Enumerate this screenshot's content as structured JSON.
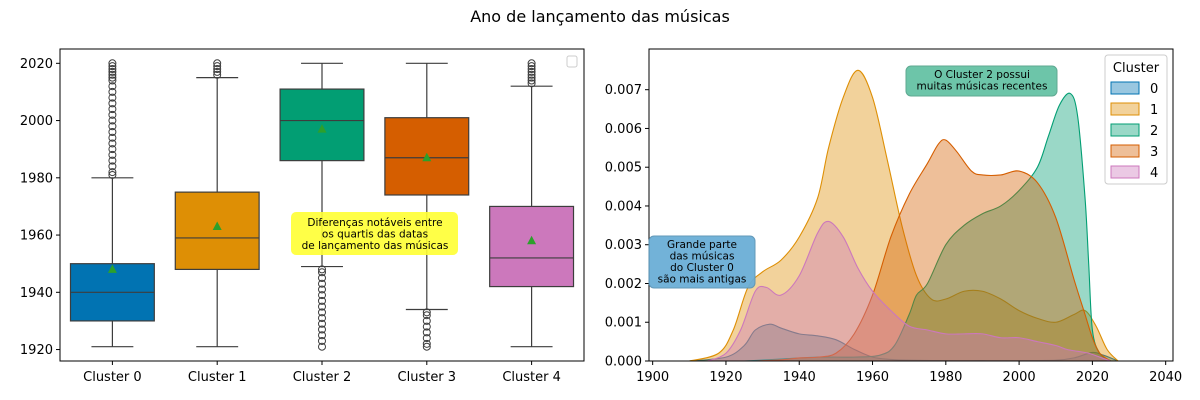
{
  "suptitle": "Ano de lançamento das músicas",
  "chart_data": [
    {
      "type": "box",
      "categories": [
        "Cluster 0",
        "Cluster 1",
        "Cluster 2",
        "Cluster 3",
        "Cluster 4"
      ],
      "colors": [
        "#0173b2",
        "#de8f05",
        "#029e73",
        "#d55e00",
        "#cc78bc"
      ],
      "boxes": [
        {
          "whislo": 1921,
          "q1": 1930,
          "median": 1940,
          "q3": 1950,
          "whishi": 1980,
          "mean": 1948,
          "fliers": [
            1981,
            1982,
            1984,
            1986,
            1988,
            1990,
            1992,
            1994,
            1996,
            1998,
            2000,
            2002,
            2004,
            2006,
            2008,
            2010,
            2012,
            2014,
            2015,
            2016,
            2017,
            2018,
            2019,
            2020
          ]
        },
        {
          "whislo": 1921,
          "q1": 1948,
          "median": 1959,
          "q3": 1975,
          "whishi": 2015,
          "mean": 1963,
          "fliers": [
            2016,
            2017,
            2018,
            2019,
            2020
          ]
        },
        {
          "whislo": 1949,
          "q1": 1986,
          "median": 2000,
          "q3": 2011,
          "whishi": 2020,
          "mean": 1997,
          "fliers": [
            1921,
            1923,
            1925,
            1927,
            1929,
            1931,
            1933,
            1935,
            1937,
            1939,
            1941,
            1943,
            1945,
            1947,
            1948
          ]
        },
        {
          "whislo": 1934,
          "q1": 1974,
          "median": 1987,
          "q3": 2001,
          "whishi": 2020,
          "mean": 1987,
          "fliers": [
            1921,
            1922,
            1924,
            1926,
            1928,
            1930,
            1932,
            1933
          ]
        },
        {
          "whislo": 1921,
          "q1": 1942,
          "median": 1952,
          "q3": 1970,
          "whishi": 2012,
          "mean": 1958,
          "fliers": [
            2013,
            2014,
            2015,
            2016,
            2017,
            2018,
            2019,
            2020
          ]
        }
      ],
      "ylim": [
        1916,
        2025
      ],
      "yticks": [
        1920,
        1940,
        1960,
        1980,
        2000,
        2020
      ],
      "annotation": {
        "text": [
          "Diferenças notáveis entre",
          "os quartis das datas",
          "de lançamento das músicas"
        ],
        "color": "#ffff33"
      }
    },
    {
      "type": "area",
      "xlim": [
        1899,
        2042
      ],
      "ylim": [
        0,
        0.00805
      ],
      "xticks": [
        1900,
        1920,
        1940,
        1960,
        1980,
        2000,
        2020,
        2040
      ],
      "yticks": [
        0.0,
        0.001,
        0.002,
        0.003,
        0.004,
        0.005,
        0.006,
        0.007
      ],
      "ytick_labels": [
        "0.000",
        "0.001",
        "0.002",
        "0.003",
        "0.004",
        "0.005",
        "0.006",
        "0.007"
      ],
      "legend": {
        "title": "Cluster",
        "position": "top-right"
      },
      "series": [
        {
          "name": "0",
          "color": "#0173b2",
          "x": [
            1910,
            1920,
            1925,
            1928,
            1932,
            1935,
            1940,
            1945,
            1950,
            1955,
            1960,
            1965,
            1970,
            1980,
            1990,
            2000,
            2010,
            2015,
            2020,
            2023,
            2027
          ],
          "y": [
            0,
            0.0001,
            0.0004,
            0.0008,
            0.00095,
            0.00085,
            0.0007,
            0.00065,
            0.00055,
            0.0003,
            0.0001,
            4e-05,
            2e-05,
            1e-05,
            1e-05,
            1e-05,
            2e-05,
            8e-05,
            0.00022,
            0.00015,
            0
          ]
        },
        {
          "name": "1",
          "color": "#de8f05",
          "x": [
            1910,
            1918,
            1922,
            1926,
            1930,
            1935,
            1940,
            1945,
            1948,
            1952,
            1956,
            1960,
            1964,
            1968,
            1972,
            1976,
            1980,
            1985,
            1990,
            1995,
            2000,
            2005,
            2010,
            2015,
            2018,
            2021,
            2024,
            2027
          ],
          "y": [
            0,
            0.0002,
            0.0008,
            0.0019,
            0.0023,
            0.0026,
            0.0032,
            0.0042,
            0.0055,
            0.0068,
            0.0075,
            0.0068,
            0.0052,
            0.0035,
            0.0022,
            0.0016,
            0.0016,
            0.0018,
            0.0018,
            0.0016,
            0.0013,
            0.0011,
            0.001,
            0.0012,
            0.0013,
            0.0009,
            0.0003,
            0
          ]
        },
        {
          "name": "2",
          "color": "#029e73",
          "x": [
            1925,
            1935,
            1945,
            1955,
            1962,
            1966,
            1970,
            1972,
            1975,
            1980,
            1985,
            1990,
            1995,
            2000,
            2005,
            2008,
            2011,
            2014,
            2016,
            2018,
            2019,
            2020,
            2022,
            2025
          ],
          "y": [
            0,
            5e-05,
            0.0001,
            0.0001,
            0.00015,
            0.0004,
            0.0012,
            0.0017,
            0.002,
            0.003,
            0.0035,
            0.0038,
            0.004,
            0.0044,
            0.005,
            0.0058,
            0.0066,
            0.0069,
            0.0063,
            0.0042,
            0.0025,
            0.0008,
            0.0002,
            0
          ]
        },
        {
          "name": "3",
          "color": "#d55e00",
          "x": [
            1928,
            1935,
            1940,
            1945,
            1950,
            1955,
            1960,
            1965,
            1970,
            1975,
            1978,
            1980,
            1983,
            1987,
            1990,
            1995,
            2000,
            2005,
            2010,
            2015,
            2018,
            2020,
            2022,
            2025
          ],
          "y": [
            0,
            3e-05,
            8e-05,
            0.0001,
            0.0002,
            0.0007,
            0.0017,
            0.0032,
            0.0043,
            0.0051,
            0.0056,
            0.0057,
            0.0054,
            0.0049,
            0.0048,
            0.0048,
            0.0049,
            0.0046,
            0.0037,
            0.0021,
            0.0012,
            0.0006,
            0.0002,
            0
          ]
        },
        {
          "name": "4",
          "color": "#cc78bc",
          "x": [
            1915,
            1920,
            1924,
            1928,
            1931,
            1935,
            1940,
            1945,
            1948,
            1952,
            1956,
            1960,
            1965,
            1970,
            1975,
            1980,
            1985,
            1990,
            1995,
            2000,
            2005,
            2010,
            2013,
            2016,
            2019,
            2022,
            2025
          ],
          "y": [
            0,
            0.0002,
            0.0008,
            0.0018,
            0.0019,
            0.0017,
            0.0022,
            0.0033,
            0.0036,
            0.0032,
            0.0024,
            0.0018,
            0.0013,
            0.0009,
            0.0008,
            0.0007,
            0.0007,
            0.0007,
            0.0006,
            0.0006,
            0.0005,
            0.0004,
            0.0003,
            0.00025,
            0.0002,
            0.0001,
            0
          ]
        }
      ],
      "annotations": [
        {
          "text": [
            "O Cluster 2 possui",
            "muitas músicas recentes"
          ],
          "color": "#66c2a5"
        },
        {
          "text": [
            "Grande parte",
            "das músicas",
            "do Cluster 0",
            "são mais antigas"
          ],
          "color": "#6baed6"
        }
      ]
    }
  ]
}
